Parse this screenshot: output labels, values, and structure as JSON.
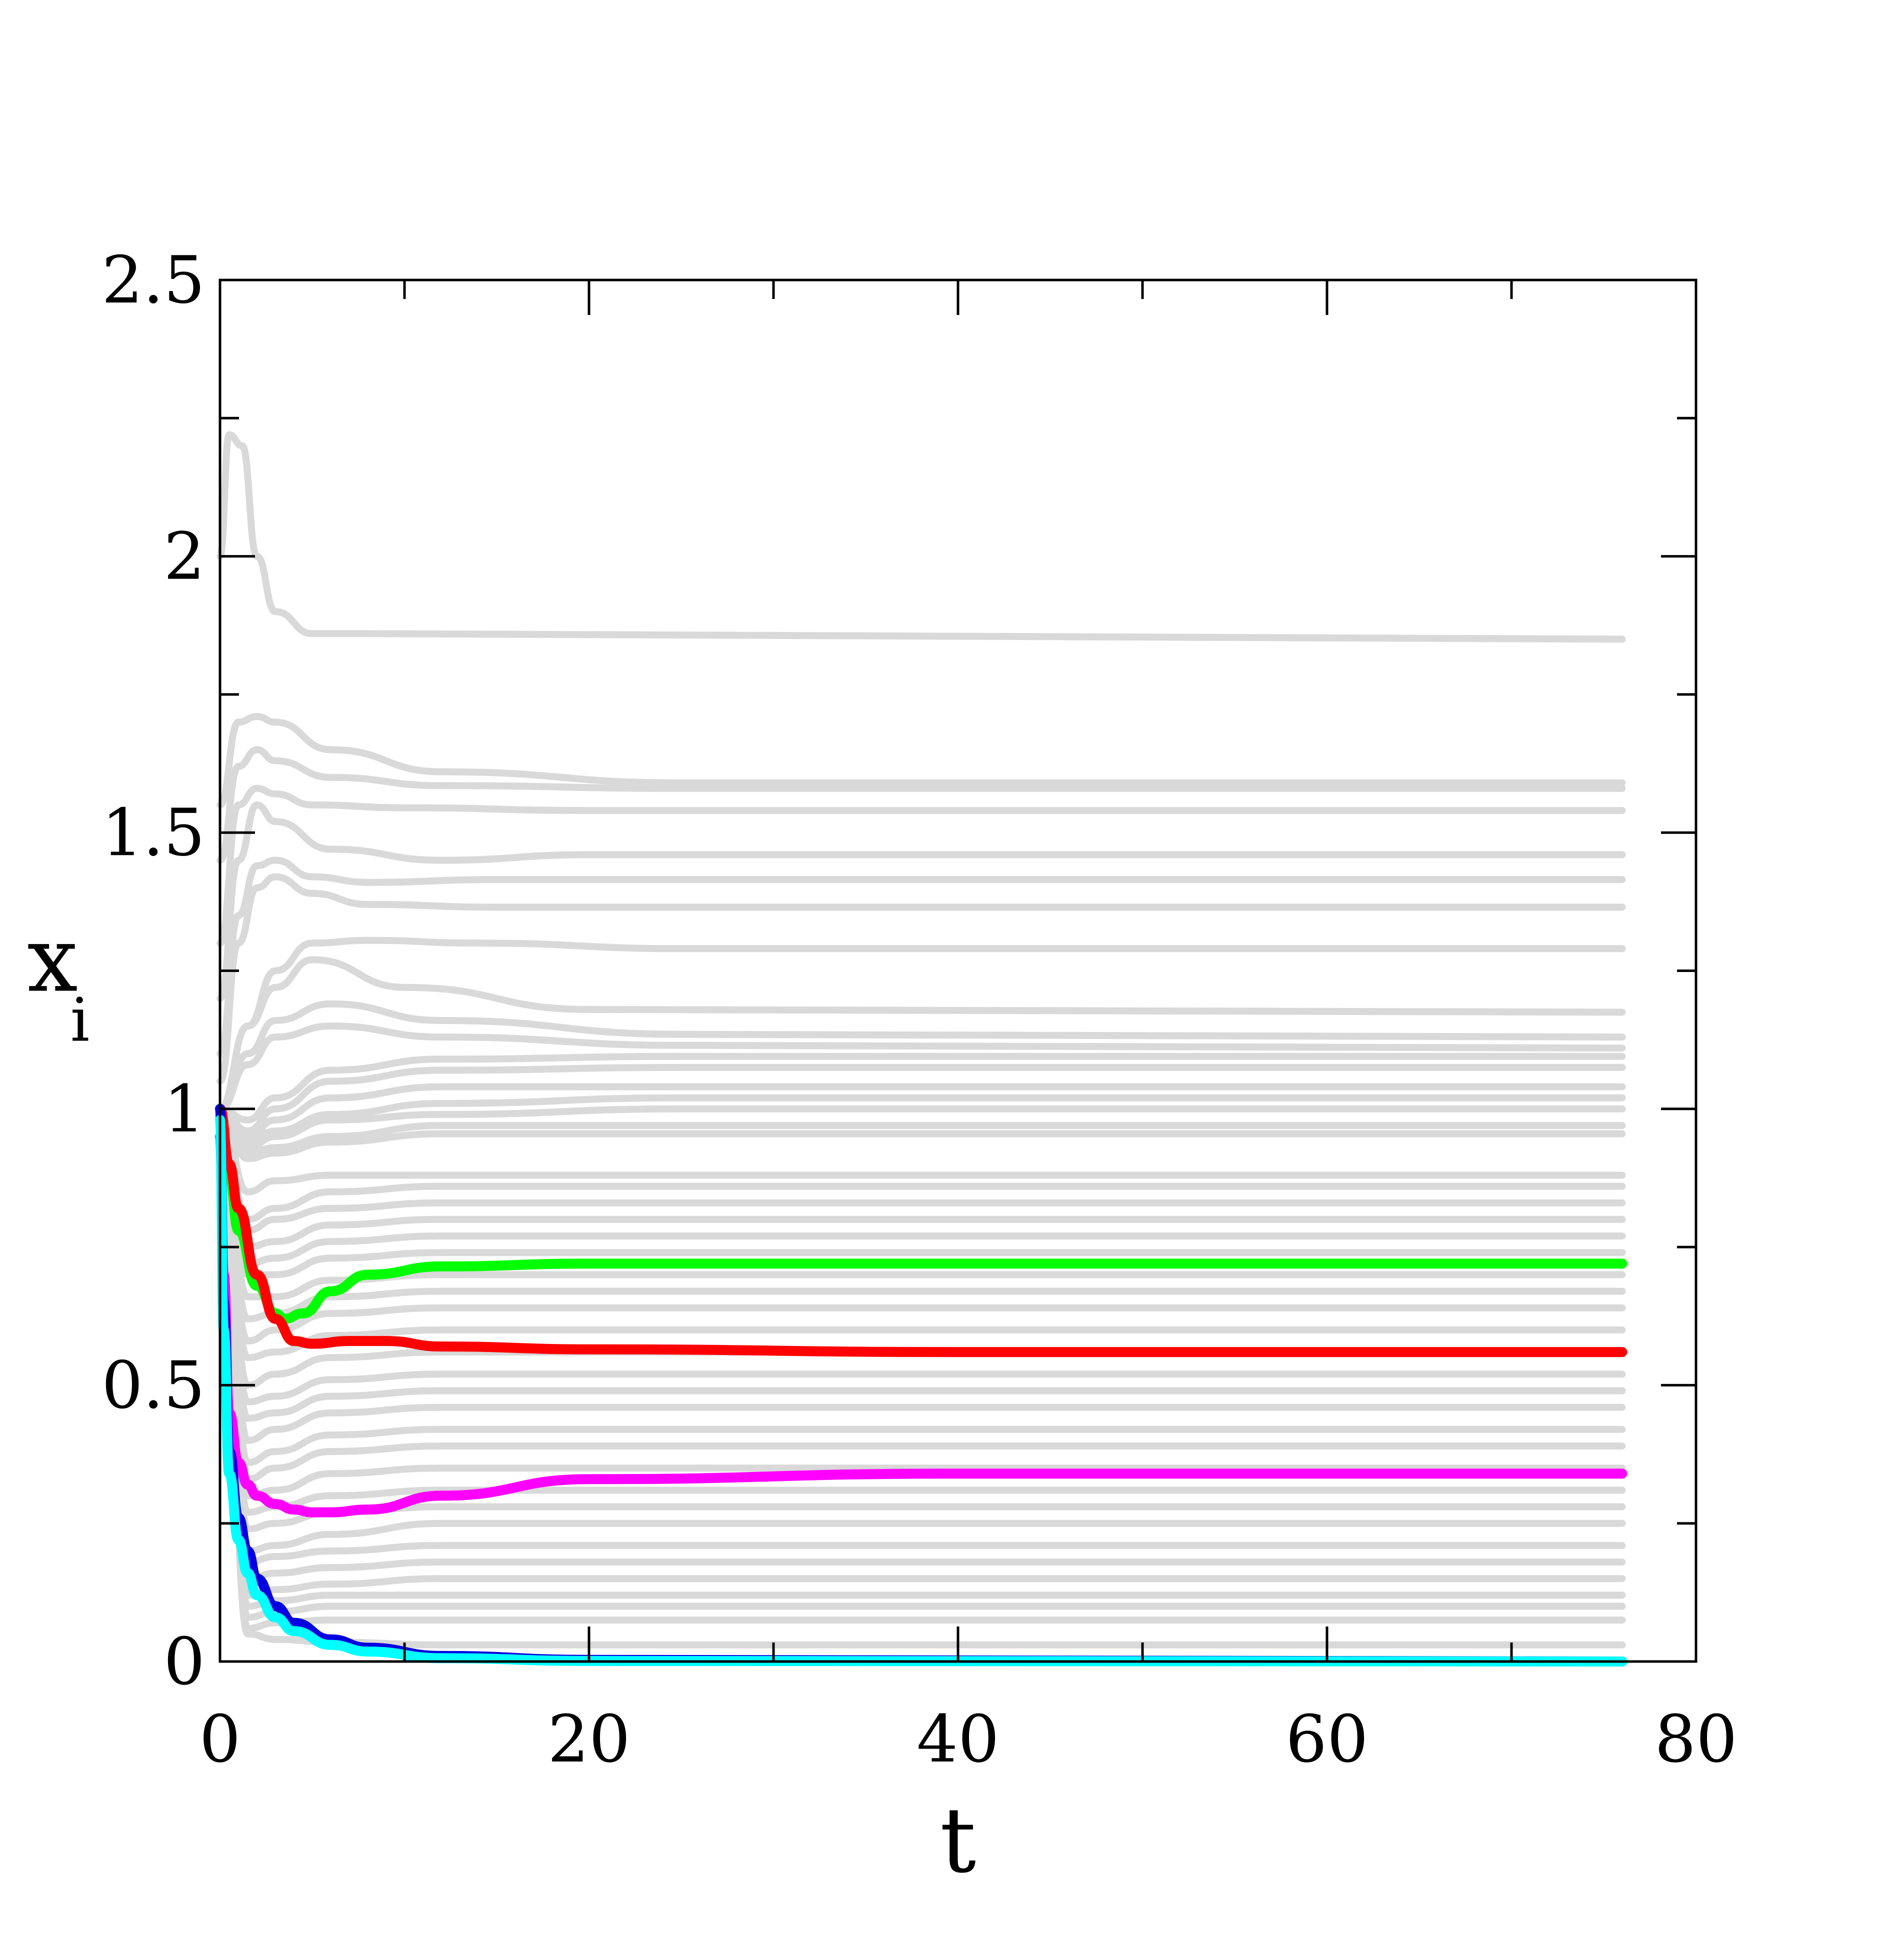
{
  "chart_data": {
    "type": "line",
    "title": "",
    "xlabel": "t",
    "ylabel": "x",
    "ylabel_subscript": "i",
    "xlim": [
      0,
      80
    ],
    "ylim": [
      0,
      2.5
    ],
    "x_ticks": [
      0,
      20,
      40,
      60,
      80
    ],
    "x_tick_labels": [
      "0",
      "20",
      "40",
      "60",
      "80"
    ],
    "y_ticks": [
      0,
      0.5,
      1,
      1.5,
      2,
      2.5
    ],
    "y_tick_labels": [
      "0",
      "0.5",
      "1",
      "1.5",
      "2",
      "2.5"
    ],
    "grid": false,
    "legend": "none",
    "t_end": 76,
    "colors": {
      "background_series": "#d9d9d9",
      "green": "#00ff00",
      "red": "#ff0000",
      "magenta": "#ff00ff",
      "blue": "#0000e0",
      "cyan": "#00ffff"
    },
    "background_series": [
      {
        "x": [
          0,
          0.5,
          1.2,
          2,
          3,
          5,
          8,
          76
        ],
        "y": [
          2.0,
          2.22,
          2.2,
          2.0,
          1.9,
          1.86,
          1.86,
          1.85
        ]
      },
      {
        "x": [
          0,
          1,
          2,
          3,
          6,
          12,
          25,
          76
        ],
        "y": [
          1.55,
          1.7,
          1.71,
          1.7,
          1.65,
          1.61,
          1.59,
          1.59
        ]
      },
      {
        "x": [
          0,
          1,
          2,
          3,
          6,
          12,
          25,
          76
        ],
        "y": [
          1.45,
          1.62,
          1.65,
          1.63,
          1.6,
          1.585,
          1.58,
          1.58
        ]
      },
      {
        "x": [
          0,
          1,
          2,
          3,
          5,
          10,
          20,
          76
        ],
        "y": [
          1.3,
          1.55,
          1.58,
          1.57,
          1.55,
          1.545,
          1.54,
          1.54
        ]
      },
      {
        "x": [
          0,
          1,
          2,
          3,
          6,
          12,
          20,
          76
        ],
        "y": [
          1.2,
          1.45,
          1.55,
          1.52,
          1.47,
          1.45,
          1.46,
          1.46
        ]
      },
      {
        "x": [
          0,
          1,
          2,
          3,
          5,
          8,
          15,
          76
        ],
        "y": [
          1.1,
          1.35,
          1.44,
          1.45,
          1.42,
          1.41,
          1.415,
          1.415
        ]
      },
      {
        "x": [
          0,
          1,
          2,
          3,
          5,
          8,
          15,
          76
        ],
        "y": [
          1.05,
          1.3,
          1.4,
          1.42,
          1.39,
          1.37,
          1.365,
          1.365
        ]
      },
      {
        "x": [
          0,
          1.5,
          3,
          5,
          8,
          14,
          25,
          76
        ],
        "y": [
          1.0,
          1.15,
          1.25,
          1.3,
          1.305,
          1.3,
          1.29,
          1.29
        ]
      },
      {
        "x": [
          0,
          1.5,
          3,
          5,
          10,
          20,
          76
        ],
        "y": [
          1.0,
          1.15,
          1.22,
          1.27,
          1.22,
          1.18,
          1.175
        ]
      },
      {
        "x": [
          0,
          1.5,
          3,
          6,
          12,
          25,
          76
        ],
        "y": [
          1.0,
          1.1,
          1.16,
          1.19,
          1.16,
          1.135,
          1.13
        ]
      },
      {
        "x": [
          0,
          1.5,
          3,
          6,
          12,
          25,
          76
        ],
        "y": [
          1.0,
          1.08,
          1.13,
          1.15,
          1.13,
          1.115,
          1.11
        ]
      },
      {
        "x": [
          0,
          1.5,
          3,
          6,
          12,
          25,
          76
        ],
        "y": [
          1.0,
          0.98,
          1.02,
          1.07,
          1.09,
          1.095,
          1.095
        ]
      },
      {
        "x": [
          0,
          1.5,
          3,
          6,
          12,
          25,
          76
        ],
        "y": [
          1.0,
          0.96,
          1.0,
          1.05,
          1.07,
          1.075,
          1.075
        ]
      },
      {
        "x": [
          0,
          1.5,
          3,
          6,
          12,
          25,
          76
        ],
        "y": [
          1.0,
          0.95,
          0.98,
          1.02,
          1.04,
          1.04,
          1.04
        ]
      },
      {
        "x": [
          0,
          1.5,
          3,
          6,
          12,
          25,
          76
        ],
        "y": [
          1.0,
          0.94,
          0.96,
          0.99,
          1.01,
          1.02,
          1.02
        ]
      },
      {
        "x": [
          0,
          1.5,
          3,
          6,
          12,
          25,
          76
        ],
        "y": [
          1.0,
          0.93,
          0.95,
          0.98,
          0.99,
          1.0,
          1.0
        ]
      },
      {
        "x": [
          0,
          1.5,
          3,
          6,
          12,
          25,
          76
        ],
        "y": [
          1.0,
          0.92,
          0.93,
          0.95,
          0.97,
          0.97,
          0.97
        ]
      },
      {
        "x": [
          0,
          1.5,
          3,
          6,
          12,
          25,
          76
        ],
        "y": [
          1.0,
          0.91,
          0.92,
          0.94,
          0.955,
          0.955,
          0.955
        ]
      },
      {
        "x": [
          0,
          1.5,
          3,
          6,
          12,
          25,
          76
        ],
        "y": [
          1.0,
          0.85,
          0.87,
          0.88,
          0.88,
          0.88,
          0.88
        ]
      },
      {
        "x": [
          0,
          1.5,
          3,
          6,
          12,
          25,
          76
        ],
        "y": [
          1.0,
          0.8,
          0.82,
          0.85,
          0.86,
          0.86,
          0.86
        ]
      },
      {
        "x": [
          0,
          1.5,
          3,
          6,
          12,
          25,
          76
        ],
        "y": [
          1.0,
          0.78,
          0.8,
          0.82,
          0.83,
          0.83,
          0.83
        ]
      },
      {
        "x": [
          0,
          1.5,
          3,
          6,
          12,
          25,
          76
        ],
        "y": [
          1.0,
          0.75,
          0.76,
          0.79,
          0.8,
          0.8,
          0.8
        ]
      },
      {
        "x": [
          0,
          1.5,
          3,
          6,
          12,
          25,
          76
        ],
        "y": [
          1.0,
          0.72,
          0.73,
          0.76,
          0.77,
          0.77,
          0.77
        ]
      },
      {
        "x": [
          0,
          1.5,
          3,
          6,
          12,
          25,
          76
        ],
        "y": [
          1.0,
          0.7,
          0.7,
          0.73,
          0.74,
          0.74,
          0.74
        ]
      },
      {
        "x": [
          0,
          1.5,
          3,
          6,
          12,
          25,
          76
        ],
        "y": [
          1.0,
          0.66,
          0.66,
          0.69,
          0.7,
          0.7,
          0.7
        ]
      },
      {
        "x": [
          0,
          1.5,
          3,
          6,
          12,
          25,
          76
        ],
        "y": [
          1.0,
          0.62,
          0.63,
          0.66,
          0.67,
          0.67,
          0.67
        ]
      },
      {
        "x": [
          0,
          1.5,
          3,
          6,
          12,
          25,
          76
        ],
        "y": [
          1.0,
          0.58,
          0.6,
          0.63,
          0.64,
          0.64,
          0.64
        ]
      },
      {
        "x": [
          0,
          1.5,
          3,
          6,
          12,
          25,
          76
        ],
        "y": [
          1.0,
          0.55,
          0.56,
          0.59,
          0.6,
          0.6,
          0.6
        ]
      },
      {
        "x": [
          0,
          1.5,
          3,
          6,
          12,
          25,
          76
        ],
        "y": [
          1.0,
          0.5,
          0.52,
          0.55,
          0.56,
          0.56,
          0.56
        ]
      },
      {
        "x": [
          0,
          1.5,
          3,
          6,
          12,
          25,
          76
        ],
        "y": [
          1.0,
          0.47,
          0.48,
          0.51,
          0.52,
          0.52,
          0.52
        ]
      },
      {
        "x": [
          0,
          1.5,
          3,
          6,
          12,
          25,
          76
        ],
        "y": [
          1.0,
          0.44,
          0.45,
          0.48,
          0.49,
          0.49,
          0.49
        ]
      },
      {
        "x": [
          0,
          1.5,
          3,
          6,
          12,
          25,
          76
        ],
        "y": [
          1.0,
          0.4,
          0.42,
          0.45,
          0.46,
          0.46,
          0.46
        ]
      },
      {
        "x": [
          0,
          1.5,
          3,
          6,
          12,
          25,
          76
        ],
        "y": [
          1.0,
          0.36,
          0.38,
          0.41,
          0.42,
          0.42,
          0.42
        ]
      },
      {
        "x": [
          0,
          1.5,
          3,
          6,
          12,
          25,
          76
        ],
        "y": [
          1.0,
          0.33,
          0.35,
          0.38,
          0.39,
          0.39,
          0.39
        ]
      },
      {
        "x": [
          0,
          1.5,
          3,
          6,
          12,
          25,
          76
        ],
        "y": [
          1.0,
          0.3,
          0.31,
          0.34,
          0.35,
          0.35,
          0.35
        ]
      },
      {
        "x": [
          0,
          1.5,
          3,
          6,
          12,
          25,
          76
        ],
        "y": [
          1.0,
          0.27,
          0.28,
          0.3,
          0.31,
          0.31,
          0.31
        ]
      },
      {
        "x": [
          0,
          1.5,
          3,
          6,
          12,
          25,
          76
        ],
        "y": [
          1.0,
          0.24,
          0.25,
          0.27,
          0.28,
          0.28,
          0.28
        ]
      },
      {
        "x": [
          0,
          1.5,
          3,
          6,
          12,
          25,
          76
        ],
        "y": [
          1.0,
          0.2,
          0.21,
          0.23,
          0.25,
          0.25,
          0.25
        ]
      },
      {
        "x": [
          0,
          1.5,
          3,
          6,
          12,
          25,
          76
        ],
        "y": [
          1.0,
          0.18,
          0.19,
          0.2,
          0.21,
          0.21,
          0.21
        ]
      },
      {
        "x": [
          0,
          1.5,
          3,
          6,
          12,
          25,
          76
        ],
        "y": [
          1.0,
          0.15,
          0.16,
          0.17,
          0.18,
          0.18,
          0.18
        ]
      },
      {
        "x": [
          0,
          1.5,
          3,
          6,
          12,
          25,
          76
        ],
        "y": [
          1.0,
          0.12,
          0.13,
          0.14,
          0.15,
          0.15,
          0.15
        ]
      },
      {
        "x": [
          0,
          1.5,
          3,
          6,
          12,
          25,
          76
        ],
        "y": [
          1.0,
          0.1,
          0.11,
          0.12,
          0.12,
          0.12,
          0.12
        ]
      },
      {
        "x": [
          0,
          1.5,
          3,
          6,
          12,
          25,
          76
        ],
        "y": [
          1.0,
          0.08,
          0.09,
          0.1,
          0.1,
          0.1,
          0.1
        ]
      },
      {
        "x": [
          0,
          1.5,
          3,
          6,
          12,
          25,
          76
        ],
        "y": [
          1.0,
          0.06,
          0.07,
          0.075,
          0.075,
          0.075,
          0.075
        ]
      },
      {
        "x": [
          0,
          1.5,
          3,
          6,
          12,
          25,
          76
        ],
        "y": [
          1.0,
          0.05,
          0.04,
          0.035,
          0.03,
          0.03,
          0.03
        ]
      }
    ],
    "series": [
      {
        "color": "#00ff00",
        "x": [
          0,
          0.5,
          1,
          2,
          3,
          3.5,
          4.5,
          6,
          8,
          12,
          20,
          40,
          76
        ],
        "y": [
          1.0,
          0.88,
          0.78,
          0.68,
          0.63,
          0.62,
          0.63,
          0.67,
          0.7,
          0.715,
          0.72,
          0.72,
          0.72
        ]
      },
      {
        "color": "#ff0000",
        "x": [
          0,
          0.5,
          1,
          2,
          3,
          4,
          5,
          7,
          9,
          12,
          20,
          40,
          76
        ],
        "y": [
          1.0,
          0.9,
          0.82,
          0.7,
          0.62,
          0.58,
          0.575,
          0.58,
          0.58,
          0.57,
          0.565,
          0.56,
          0.56
        ]
      },
      {
        "color": "#ff00ff",
        "x": [
          0,
          0.2,
          0.5,
          1,
          1.5,
          2,
          3,
          4,
          5,
          6,
          8,
          12,
          20,
          40,
          76
        ],
        "y": [
          0.95,
          0.7,
          0.45,
          0.36,
          0.32,
          0.3,
          0.285,
          0.275,
          0.27,
          0.27,
          0.275,
          0.3,
          0.33,
          0.34,
          0.34
        ]
      },
      {
        "color": "#0000e0",
        "x": [
          0,
          0.2,
          0.5,
          1,
          1.5,
          2,
          3,
          4,
          6,
          8,
          12,
          20,
          76
        ],
        "y": [
          1.0,
          0.65,
          0.38,
          0.26,
          0.2,
          0.15,
          0.1,
          0.07,
          0.04,
          0.025,
          0.01,
          0.003,
          0.0
        ]
      },
      {
        "color": "#00ffff",
        "x": [
          0,
          0.2,
          0.5,
          1,
          1.5,
          2,
          3,
          4,
          6,
          8,
          12,
          20,
          76
        ],
        "y": [
          0.98,
          0.6,
          0.34,
          0.22,
          0.16,
          0.12,
          0.08,
          0.055,
          0.03,
          0.018,
          0.006,
          0.001,
          0.0
        ]
      }
    ]
  }
}
